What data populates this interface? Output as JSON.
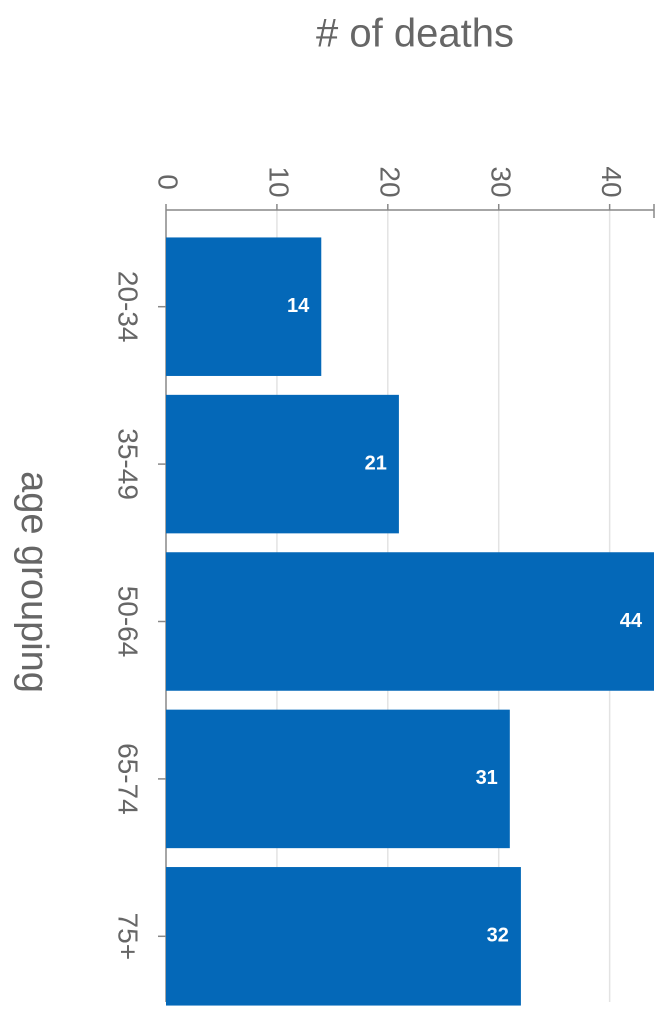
{
  "chart_data": {
    "type": "bar",
    "orientation": "horizontal",
    "title": "# of deaths",
    "y_label": "age grouping",
    "categories": [
      "20-34",
      "35-49",
      "50-64",
      "65-74",
      "75+"
    ],
    "values": [
      14,
      21,
      44,
      31,
      32
    ],
    "color": "#0468b8",
    "xlim": [
      0,
      44
    ],
    "xticks": [
      0,
      10,
      20,
      30,
      40
    ],
    "grid": true
  }
}
